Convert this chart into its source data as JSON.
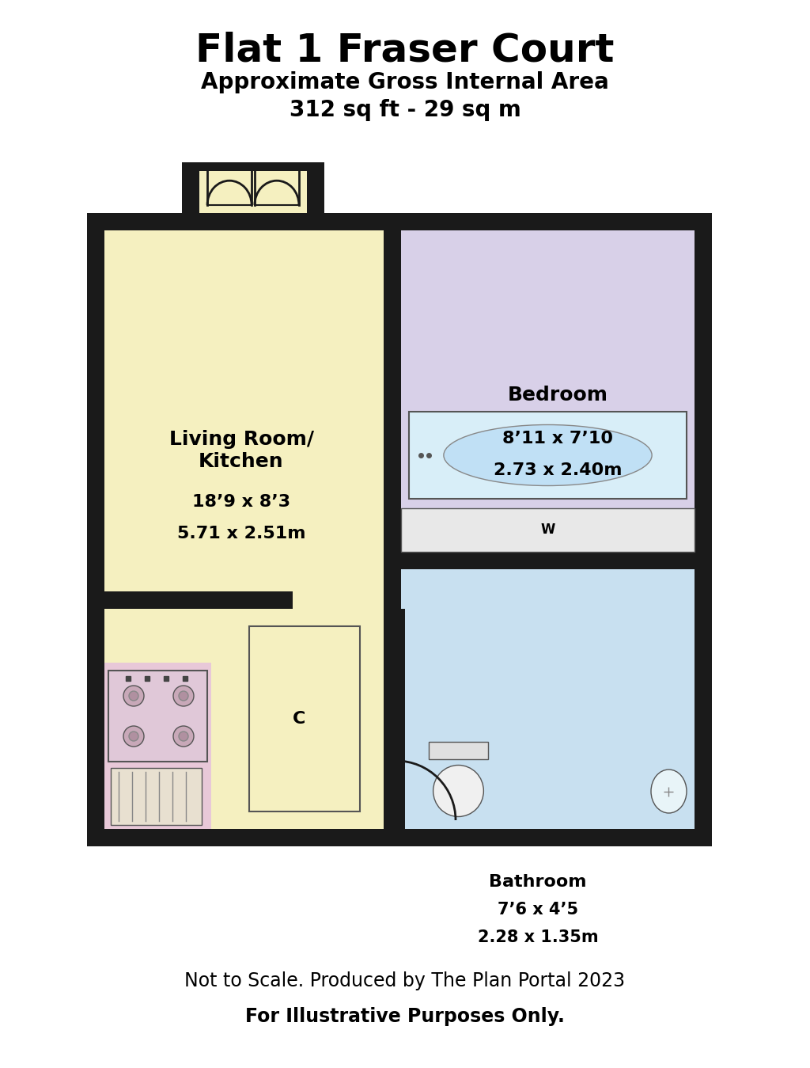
{
  "title": "Flat 1 Fraser Court",
  "subtitle1": "Approximate Gross Internal Area",
  "subtitle2": "312 sq ft - 29 sq m",
  "footer1": "Not to Scale. Produced by The Plan Portal 2023",
  "footer2": "For Illustrative Purposes Only.",
  "bg_color": "#ffffff",
  "wall_color": "#1a1a1a",
  "living_room_color": "#f5f0c0",
  "bedroom_color": "#d8d0e8",
  "bathroom_color": "#c8e0f0",
  "kitchen_appliance_color": "#e8c8d8",
  "watermark_color": "#cccccc",
  "living_label": "Living Room/\nKitchen",
  "living_dims1": "18’9 x 8’3",
  "living_dims2": "5.71 x 2.51m",
  "bedroom_label": "Bedroom",
  "bedroom_dims1": "8’11 x 7’10",
  "bedroom_dims2": "2.73 x 2.40m",
  "bathroom_label": "Bathroom",
  "bathroom_dims1": "7’6 x 4’5",
  "bathroom_dims2": "2.28 x 1.35m"
}
